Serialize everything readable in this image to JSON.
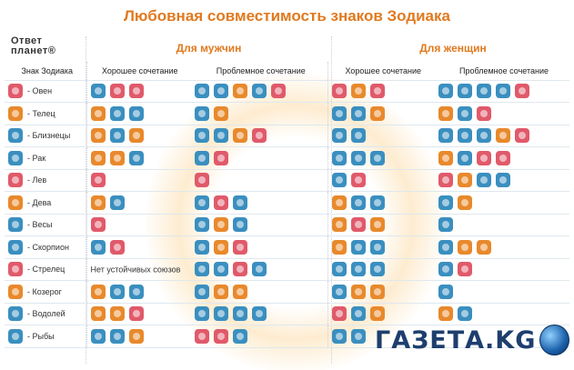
{
  "title": "Любовная совместимость знаков Зодиака",
  "logo": {
    "line1": "Ответ",
    "line2": "планет®"
  },
  "headers": {
    "for_men": "Для мужчин",
    "for_women": "Для женщин",
    "sign_col": "Знак Зодиака",
    "good_men": "Хорошее сочетание",
    "problem_men": "Проблемное сочетание",
    "good_women": "Хорошее сочетание",
    "problem_women": "Проблемное сочетание"
  },
  "colors": {
    "title": "#e07a1f",
    "fire": "#e05a6a",
    "earth": "#e8892c",
    "air": "#3a8fbf"
  },
  "rows": [
    {
      "sign": "- Овен",
      "icon": "red",
      "men_good": [
        "blue",
        "red",
        "red"
      ],
      "men_problem": [
        "blue",
        "blue",
        "orange",
        "blue",
        "red"
      ],
      "women_good": [
        "red",
        "orange",
        "red"
      ],
      "women_problem": [
        "blue",
        "blue",
        "blue",
        "blue",
        "red"
      ],
      "note": ""
    },
    {
      "sign": "- Телец",
      "icon": "orange",
      "men_good": [
        "orange",
        "blue",
        "blue"
      ],
      "men_problem": [
        "blue",
        "orange"
      ],
      "women_good": [
        "blue",
        "blue",
        "orange"
      ],
      "women_problem": [
        "orange",
        "blue",
        "red"
      ],
      "note": ""
    },
    {
      "sign": "- Близнецы",
      "icon": "blue",
      "men_good": [
        "orange",
        "blue",
        "orange"
      ],
      "men_problem": [
        "blue",
        "blue",
        "orange",
        "red"
      ],
      "women_good": [
        "blue",
        "blue"
      ],
      "women_problem": [
        "blue",
        "blue",
        "blue",
        "orange",
        "red"
      ],
      "note": ""
    },
    {
      "sign": "- Рак",
      "icon": "blue",
      "men_good": [
        "orange",
        "orange",
        "blue"
      ],
      "men_problem": [
        "blue",
        "red"
      ],
      "women_good": [
        "blue",
        "blue",
        "blue"
      ],
      "women_problem": [
        "orange",
        "blue",
        "red",
        "red"
      ],
      "note": ""
    },
    {
      "sign": "- Лев",
      "icon": "red",
      "men_good": [
        "red"
      ],
      "men_problem": [
        "red"
      ],
      "women_good": [
        "blue",
        "red"
      ],
      "women_problem": [
        "red",
        "orange",
        "blue",
        "blue"
      ],
      "note": ""
    },
    {
      "sign": "- Дева",
      "icon": "orange",
      "men_good": [
        "orange",
        "blue"
      ],
      "men_problem": [
        "blue",
        "red",
        "blue"
      ],
      "women_good": [
        "orange",
        "blue",
        "blue"
      ],
      "women_problem": [
        "blue",
        "orange"
      ],
      "note": ""
    },
    {
      "sign": "- Весы",
      "icon": "blue",
      "men_good": [
        "red"
      ],
      "men_problem": [
        "blue",
        "orange",
        "blue"
      ],
      "women_good": [
        "orange",
        "red",
        "orange"
      ],
      "women_problem": [
        "blue"
      ],
      "note": ""
    },
    {
      "sign": "- Скорпион",
      "icon": "blue",
      "men_good": [
        "blue",
        "red"
      ],
      "men_problem": [
        "blue",
        "orange",
        "red"
      ],
      "women_good": [
        "orange",
        "blue",
        "blue"
      ],
      "women_problem": [
        "blue",
        "orange",
        "orange"
      ],
      "note": ""
    },
    {
      "sign": "- Стрелец",
      "icon": "red",
      "men_good": [],
      "men_problem": [
        "blue",
        "blue",
        "red",
        "blue"
      ],
      "women_good": [
        "blue",
        "blue",
        "blue"
      ],
      "women_problem": [
        "blue",
        "red"
      ],
      "note": "Нет устойчивых союзов"
    },
    {
      "sign": "- Козерог",
      "icon": "orange",
      "men_good": [
        "orange",
        "blue",
        "blue"
      ],
      "men_problem": [
        "blue",
        "orange",
        "orange"
      ],
      "women_good": [
        "blue",
        "orange",
        "orange"
      ],
      "women_problem": [
        "blue"
      ],
      "note": ""
    },
    {
      "sign": "- Водолей",
      "icon": "blue",
      "men_good": [
        "orange",
        "orange",
        "red"
      ],
      "men_problem": [
        "blue",
        "blue",
        "blue",
        "blue"
      ],
      "women_good": [
        "red",
        "blue",
        "orange"
      ],
      "women_problem": [
        "orange",
        "blue"
      ],
      "note": ""
    },
    {
      "sign": "- Рыбы",
      "icon": "blue",
      "men_good": [
        "blue",
        "blue",
        "orange"
      ],
      "men_problem": [
        "red",
        "red",
        "blue"
      ],
      "women_good": [
        "blue",
        "blue"
      ],
      "women_problem": [],
      "note": ""
    }
  ],
  "watermark": "ГАЗЕТА.KG"
}
